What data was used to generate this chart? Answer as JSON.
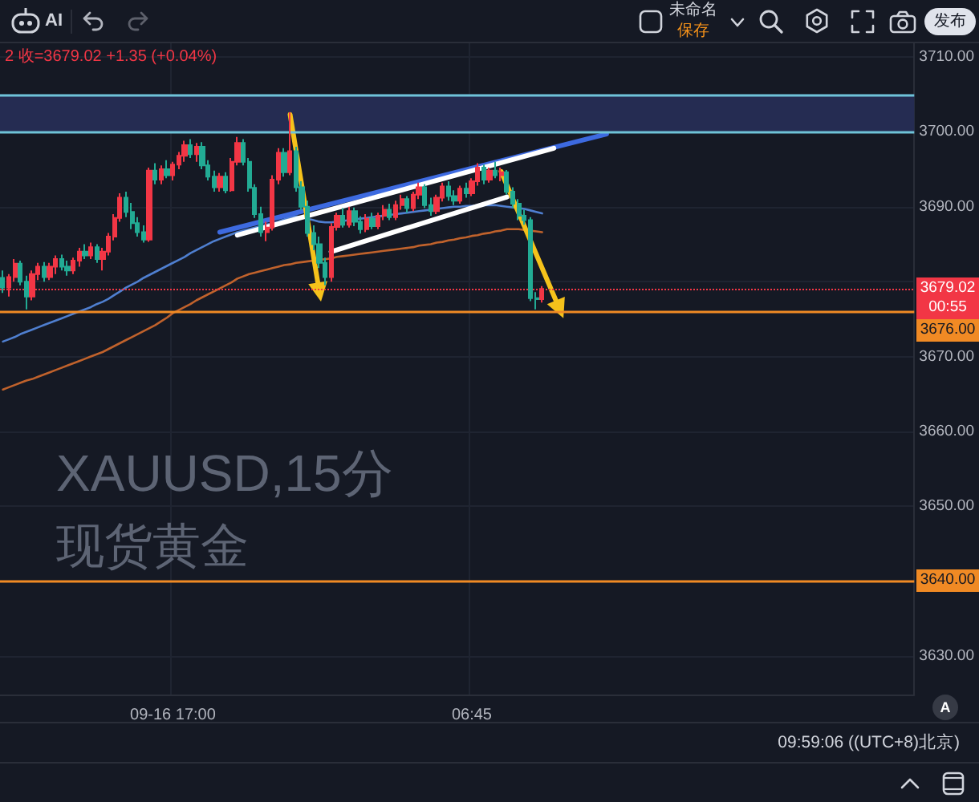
{
  "chart_data": {
    "type": "candlestick",
    "title": "XAUUSD,15分",
    "subtitle": "现货黄金",
    "categories": [
      null,
      null,
      null,
      null,
      null,
      null,
      null,
      null,
      null,
      null,
      null,
      null,
      null,
      null,
      null,
      null,
      null,
      null,
      null,
      null,
      null,
      null,
      null,
      null,
      null,
      null,
      null,
      null,
      null,
      "09-16 17:00",
      null,
      null,
      null,
      null,
      null,
      null,
      null,
      null,
      null,
      null,
      null,
      null,
      null,
      null,
      null,
      null,
      null,
      null,
      null,
      null,
      null,
      null,
      null,
      null,
      null,
      null,
      null,
      null,
      null,
      null,
      null,
      null,
      null,
      null,
      null,
      null,
      null,
      null,
      null,
      null,
      null,
      null,
      null,
      null,
      null,
      null,
      null,
      null,
      null,
      null,
      "06:45",
      null,
      null,
      null,
      null,
      null,
      null,
      null,
      null,
      null,
      null,
      null,
      null,
      null,
      null,
      null,
      null,
      null,
      null,
      null,
      null,
      null,
      null,
      null,
      null,
      null,
      null,
      null,
      null,
      null,
      null,
      null,
      null,
      null,
      null,
      null,
      null,
      null,
      null,
      null,
      null,
      null,
      null,
      null,
      null,
      null,
      null,
      null,
      null,
      null,
      null,
      null,
      null,
      null,
      null,
      null,
      null,
      null,
      null,
      null,
      null,
      null,
      null,
      null,
      null,
      null,
      null,
      null,
      null,
      null,
      null,
      null,
      null,
      null,
      null,
      null
    ],
    "ohlc": [
      [
        3680.5,
        3681.5,
        3678.5,
        3679.2
      ],
      [
        3679.2,
        3681.0,
        3678.0,
        3680.6
      ],
      [
        3680.6,
        3683.0,
        3680.0,
        3682.4
      ],
      [
        3682.4,
        3682.8,
        3679.5,
        3680.0
      ],
      [
        3680.0,
        3680.8,
        3676.3,
        3678.0
      ],
      [
        3678.0,
        3681.5,
        3677.5,
        3681.0
      ],
      [
        3681.0,
        3682.5,
        3680.2,
        3682.0
      ],
      [
        3682.0,
        3682.6,
        3680.0,
        3680.6
      ],
      [
        3680.6,
        3682.5,
        3680.2,
        3682.0
      ],
      [
        3682.0,
        3683.5,
        3681.0,
        3683.0
      ],
      [
        3683.0,
        3683.6,
        3681.5,
        3682.0
      ],
      [
        3682.0,
        3682.8,
        3680.8,
        3681.5
      ],
      [
        3681.5,
        3683.2,
        3681.0,
        3682.8
      ],
      [
        3682.8,
        3684.5,
        3682.0,
        3684.0
      ],
      [
        3684.0,
        3685.0,
        3683.0,
        3683.5
      ],
      [
        3683.5,
        3685.2,
        3683.0,
        3684.6
      ],
      [
        3684.6,
        3685.0,
        3682.5,
        3683.0
      ],
      [
        3683.0,
        3684.5,
        3681.5,
        3684.0
      ],
      [
        3684.0,
        3686.5,
        3683.5,
        3686.0
      ],
      [
        3686.0,
        3689.0,
        3685.5,
        3688.5
      ],
      [
        3688.5,
        3691.8,
        3688.0,
        3691.2
      ],
      [
        3691.2,
        3692.0,
        3688.6,
        3689.3
      ],
      [
        3689.3,
        3690.5,
        3687.0,
        3687.8
      ],
      [
        3687.8,
        3688.6,
        3686.0,
        3686.6
      ],
      [
        3686.6,
        3687.5,
        3685.2,
        3685.6
      ],
      [
        3685.6,
        3695.2,
        3685.3,
        3694.8
      ],
      [
        3694.8,
        3695.8,
        3693.0,
        3693.6
      ],
      [
        3693.6,
        3695.5,
        3693.0,
        3695.0
      ],
      [
        3695.0,
        3696.2,
        3693.8,
        3694.2
      ],
      [
        3694.2,
        3696.0,
        3693.5,
        3695.6
      ],
      [
        3695.6,
        3697.3,
        3695.0,
        3696.8
      ],
      [
        3696.8,
        3698.8,
        3696.0,
        3698.2
      ],
      [
        3698.2,
        3699.0,
        3696.5,
        3697.0
      ],
      [
        3697.0,
        3698.5,
        3696.0,
        3698.0
      ],
      [
        3698.0,
        3698.6,
        3695.0,
        3695.5
      ],
      [
        3695.5,
        3696.2,
        3693.5,
        3694.0
      ],
      [
        3694.0,
        3694.8,
        3692.0,
        3692.6
      ],
      [
        3692.6,
        3694.5,
        3692.0,
        3694.0
      ],
      [
        3694.0,
        3694.6,
        3691.8,
        3692.2
      ],
      [
        3692.2,
        3696.5,
        3692.0,
        3696.0
      ],
      [
        3696.0,
        3699.3,
        3695.5,
        3698.5
      ],
      [
        3698.5,
        3699.0,
        3695.5,
        3696.0
      ],
      [
        3696.0,
        3696.5,
        3692.0,
        3692.5
      ],
      [
        3692.5,
        3693.0,
        3688.5,
        3689.0
      ],
      [
        3689.0,
        3690.0,
        3686.0,
        3686.6
      ],
      [
        3686.6,
        3688.0,
        3685.4,
        3687.2
      ],
      [
        3687.2,
        3694.2,
        3686.8,
        3693.6
      ],
      [
        3693.6,
        3697.8,
        3693.0,
        3697.2
      ],
      [
        3697.2,
        3697.8,
        3694.0,
        3694.6
      ],
      [
        3694.6,
        3702.6,
        3694.2,
        3697.4
      ],
      [
        3697.4,
        3698.0,
        3692.0,
        3692.6
      ],
      [
        3692.6,
        3693.4,
        3689.5,
        3690.0
      ],
      [
        3690.0,
        3690.8,
        3686.0,
        3686.5
      ],
      [
        3686.5,
        3687.5,
        3684.2,
        3685.0
      ],
      [
        3685.0,
        3686.0,
        3681.8,
        3682.5
      ],
      [
        3682.5,
        3683.2,
        3679.5,
        3680.6
      ],
      [
        3680.6,
        3687.8,
        3680.0,
        3687.3
      ],
      [
        3687.3,
        3689.2,
        3686.8,
        3688.8
      ],
      [
        3688.8,
        3689.8,
        3687.2,
        3687.6
      ],
      [
        3687.6,
        3690.0,
        3687.2,
        3689.4
      ],
      [
        3689.4,
        3689.9,
        3687.4,
        3688.0
      ],
      [
        3688.0,
        3688.7,
        3686.4,
        3687.0
      ],
      [
        3687.0,
        3689.0,
        3686.6,
        3688.4
      ],
      [
        3688.4,
        3689.2,
        3687.0,
        3687.4
      ],
      [
        3687.4,
        3689.2,
        3687.0,
        3688.8
      ],
      [
        3688.8,
        3690.2,
        3688.2,
        3689.6
      ],
      [
        3689.6,
        3690.4,
        3688.2,
        3688.6
      ],
      [
        3688.6,
        3690.8,
        3688.2,
        3690.2
      ],
      [
        3690.2,
        3691.6,
        3689.6,
        3691.0
      ],
      [
        3691.0,
        3691.4,
        3689.2,
        3689.8
      ],
      [
        3689.8,
        3692.0,
        3689.4,
        3691.6
      ],
      [
        3691.6,
        3693.2,
        3691.0,
        3692.6
      ],
      [
        3692.6,
        3693.0,
        3689.8,
        3690.2
      ],
      [
        3690.2,
        3691.2,
        3688.8,
        3689.4
      ],
      [
        3689.4,
        3691.6,
        3689.0,
        3691.2
      ],
      [
        3691.2,
        3693.2,
        3690.7,
        3692.7
      ],
      [
        3692.7,
        3693.4,
        3690.8,
        3691.4
      ],
      [
        3691.4,
        3692.2,
        3690.2,
        3690.8
      ],
      [
        3690.8,
        3692.8,
        3690.4,
        3692.4
      ],
      [
        3692.4,
        3693.2,
        3691.2,
        3691.8
      ],
      [
        3691.8,
        3693.8,
        3691.4,
        3693.4
      ],
      [
        3693.4,
        3695.8,
        3692.8,
        3695.2
      ],
      [
        3695.2,
        3695.6,
        3693.0,
        3693.6
      ],
      [
        3693.6,
        3695.2,
        3693.2,
        3694.8
      ],
      [
        3694.8,
        3696.0,
        3693.8,
        3694.2
      ],
      [
        3694.2,
        3695.2,
        3693.4,
        3694.6
      ],
      [
        3694.6,
        3694.9,
        3691.6,
        3692.0
      ],
      [
        3692.0,
        3692.6,
        3689.8,
        3690.4
      ],
      [
        3690.4,
        3691.0,
        3688.2,
        3688.8
      ],
      [
        3688.8,
        3689.6,
        3687.6,
        3688.2
      ],
      [
        3688.2,
        3688.6,
        3677.4,
        3677.8
      ],
      [
        3677.8,
        3678.6,
        3676.3,
        3677.67
      ],
      [
        3677.67,
        3679.4,
        3677.2,
        3679.02
      ],
      null,
      null,
      null,
      null,
      null,
      null,
      null,
      null,
      null,
      null,
      null,
      null,
      null,
      null,
      null,
      null,
      null,
      null,
      null,
      null,
      null,
      null,
      null,
      null,
      null,
      null,
      null,
      null,
      null,
      null,
      null,
      null,
      null,
      null,
      null,
      null,
      null,
      null,
      null,
      null,
      null,
      null,
      null,
      null,
      null,
      null,
      null,
      null,
      null,
      null,
      null,
      null,
      null,
      null,
      null,
      null,
      null,
      null,
      null,
      null,
      null,
      null,
      null
    ],
    "colors": [
      "#22ab94",
      "#f23645",
      "#f23645",
      "#22ab94",
      "#22ab94",
      "#f23645",
      "#f23645",
      "#22ab94",
      "#f23645",
      "#f23645",
      "#22ab94",
      "#22ab94",
      "#f23645",
      "#f23645",
      "#22ab94",
      "#f23645",
      "#22ab94",
      "#f23645",
      "#f23645",
      "#f23645",
      "#f23645",
      "#22ab94",
      "#22ab94",
      "#22ab94",
      "#22ab94",
      "#f23645",
      "#22ab94",
      "#f23645",
      "#22ab94",
      "#f23645",
      "#f23645",
      "#f23645",
      "#22ab94",
      "#f23645",
      "#22ab94",
      "#22ab94",
      "#22ab94",
      "#f23645",
      "#22ab94",
      "#f23645",
      "#f23645",
      "#22ab94",
      "#22ab94",
      "#22ab94",
      "#22ab94",
      "#f23645",
      "#f23645",
      "#f23645",
      "#22ab94",
      "#f23645",
      "#22ab94",
      "#22ab94",
      "#22ab94",
      "#22ab94",
      "#22ab94",
      "#22ab94",
      "#f23645",
      "#f23645",
      "#22ab94",
      "#f23645",
      "#22ab94",
      "#22ab94",
      "#f23645",
      "#22ab94",
      "#f23645",
      "#f23645",
      "#22ab94",
      "#f23645",
      "#f23645",
      "#22ab94",
      "#f23645",
      "#f23645",
      "#22ab94",
      "#22ab94",
      "#f23645",
      "#f23645",
      "#22ab94",
      "#22ab94",
      "#f23645",
      "#22ab94",
      "#f23645",
      "#f23645",
      "#22ab94",
      "#f23645",
      "#22ab94",
      "#f23645",
      "#22ab94",
      "#22ab94",
      "#22ab94",
      "#22ab94",
      "#22ab94",
      "#22ab94",
      "#f23645",
      null,
      null,
      null,
      null,
      null,
      null,
      null,
      null,
      null,
      null,
      null,
      null,
      null,
      null,
      null,
      null,
      null,
      null,
      null,
      null,
      null,
      null,
      null,
      null,
      null,
      null,
      null,
      null,
      null,
      null,
      null,
      null,
      null,
      null,
      null,
      null,
      null,
      null,
      null,
      null,
      null,
      null,
      null,
      null,
      null,
      null,
      null,
      null,
      null,
      null,
      null,
      null,
      null,
      null,
      null,
      null,
      null,
      null,
      null,
      null,
      null,
      null,
      null
    ],
    "series": [
      {
        "type": "line",
        "color": "#4f7fd0",
        "values": [
          3672.0,
          3672.3,
          3672.6,
          3673.0,
          3673.3,
          3673.6,
          3673.9,
          3674.2,
          3674.5,
          3674.8,
          3675.1,
          3675.4,
          3675.7,
          3676.0,
          3676.3,
          3676.6,
          3677.0,
          3677.3,
          3677.7,
          3678.2,
          3678.7,
          3679.2,
          3679.6,
          3680.0,
          3680.5,
          3680.9,
          3681.3,
          3681.7,
          3682.1,
          3682.5,
          3682.9,
          3683.3,
          3683.8,
          3684.2,
          3684.6,
          3685.0,
          3685.4,
          3685.7,
          3686.0,
          3686.3,
          3686.6,
          3686.8,
          3687.0,
          3687.2,
          3687.4,
          3687.6,
          3687.8,
          3688.0,
          3688.3,
          3688.6,
          3688.7,
          3688.6,
          3688.4,
          3688.2,
          3688.0,
          3687.9,
          3687.9,
          3688.0,
          3688.1,
          3688.2,
          3688.3,
          3688.4,
          3688.5,
          3688.6,
          3688.7,
          3688.8,
          3688.9,
          3689.0,
          3689.1,
          3689.2,
          3689.3,
          3689.4,
          3689.5,
          3689.6,
          3689.7,
          3689.8,
          3689.9,
          3690.0,
          3690.0,
          3690.1,
          3690.1,
          3690.2,
          3690.2,
          3690.2,
          3690.2,
          3690.1,
          3690.0,
          3689.9,
          3689.8,
          3689.7,
          3689.5,
          3689.3,
          3689.1,
          null,
          null,
          null,
          null,
          null,
          null,
          null,
          null,
          null,
          null,
          null,
          null,
          null,
          null,
          null,
          null,
          null,
          null,
          null,
          null,
          null,
          null,
          null,
          null,
          null,
          null,
          null,
          null,
          null,
          null,
          null,
          null,
          null,
          null,
          null,
          null,
          null,
          null,
          null,
          null,
          null,
          null,
          null,
          null,
          null,
          null,
          null,
          null,
          null,
          null,
          null,
          null,
          null,
          null,
          null,
          null,
          null,
          null,
          null,
          null,
          null,
          null,
          null
        ]
      },
      {
        "type": "line",
        "color": "#c0622c",
        "values": [
          3665.6,
          3665.9,
          3666.2,
          3666.5,
          3666.8,
          3667.0,
          3667.3,
          3667.6,
          3667.9,
          3668.2,
          3668.5,
          3668.8,
          3669.1,
          3669.4,
          3669.7,
          3670.0,
          3670.3,
          3670.6,
          3671.0,
          3671.4,
          3671.8,
          3672.2,
          3672.6,
          3673.0,
          3673.4,
          3673.8,
          3674.2,
          3674.7,
          3675.2,
          3675.8,
          3676.2,
          3676.6,
          3677.0,
          3677.5,
          3677.9,
          3678.3,
          3678.7,
          3679.1,
          3679.5,
          3679.9,
          3680.4,
          3680.7,
          3681.0,
          3681.2,
          3681.4,
          3681.6,
          3681.8,
          3682.0,
          3682.2,
          3682.3,
          3682.5,
          3682.6,
          3682.7,
          3682.8,
          3682.9,
          3683.0,
          3683.1,
          3683.3,
          3683.4,
          3683.5,
          3683.6,
          3683.7,
          3683.8,
          3683.9,
          3684.0,
          3684.1,
          3684.2,
          3684.3,
          3684.4,
          3684.5,
          3684.6,
          3684.8,
          3684.9,
          3685.0,
          3685.2,
          3685.3,
          3685.5,
          3685.6,
          3685.8,
          3685.9,
          3686.1,
          3686.2,
          3686.4,
          3686.5,
          3686.7,
          3686.8,
          3687.0,
          3687.0,
          3687.0,
          3686.9,
          3686.8,
          3686.7,
          3686.6,
          null,
          null,
          null,
          null,
          null,
          null,
          null,
          null,
          null,
          null,
          null,
          null,
          null,
          null,
          null,
          null,
          null,
          null,
          null,
          null,
          null,
          null,
          null,
          null,
          null,
          null,
          null,
          null,
          null,
          null,
          null,
          null,
          null,
          null,
          null,
          null,
          null,
          null,
          null,
          null,
          null,
          null,
          null,
          null,
          null,
          null,
          null,
          null,
          null,
          null,
          null,
          null,
          null,
          null,
          null,
          null,
          null,
          null,
          null,
          null,
          null,
          null,
          null
        ]
      },
      {
        "type": "line",
        "color": "#3d6ae0",
        "values": [
          null,
          null,
          null,
          null,
          null,
          null,
          null,
          null,
          null,
          null,
          null,
          null,
          null,
          null,
          null,
          null,
          null,
          null,
          null,
          null,
          null,
          null,
          null,
          null,
          null,
          null,
          null,
          null,
          null,
          null,
          null,
          null,
          null,
          null,
          null,
          null,
          null,
          3686.6,
          null,
          null,
          null,
          null,
          null,
          null,
          null,
          null,
          null,
          null,
          null,
          null,
          null,
          null,
          null,
          null,
          null,
          null,
          null,
          null,
          null,
          null,
          null,
          null,
          null,
          null,
          null,
          null,
          null,
          null,
          null,
          null,
          null,
          null,
          null,
          null,
          null,
          null,
          null,
          null,
          null,
          null,
          null,
          null,
          null,
          null,
          null,
          null,
          null,
          null,
          null,
          null,
          null,
          null,
          null,
          null,
          null,
          null,
          null,
          null,
          null,
          null,
          null,
          null,
          null,
          3699.7,
          null,
          null,
          null,
          null,
          null,
          null,
          null,
          null,
          null,
          null,
          null,
          null,
          null,
          null,
          null,
          null,
          null,
          null,
          null,
          null,
          null,
          null,
          null,
          null,
          null,
          null,
          null,
          null,
          null,
          null,
          null,
          null,
          null,
          null,
          null,
          null,
          null,
          null,
          null,
          null,
          null,
          null,
          null,
          null,
          null,
          null,
          null,
          null,
          null,
          null,
          null,
          null
        ]
      },
      {
        "type": "line",
        "color": "#ffffff",
        "values": [
          null,
          null,
          null,
          null,
          null,
          null,
          null,
          null,
          null,
          null,
          null,
          null,
          null,
          null,
          null,
          null,
          null,
          null,
          null,
          null,
          null,
          null,
          null,
          null,
          null,
          null,
          null,
          null,
          null,
          null,
          null,
          null,
          null,
          null,
          null,
          null,
          null,
          null,
          null,
          null,
          3686.2,
          null,
          null,
          null,
          null,
          null,
          null,
          null,
          null,
          null,
          null,
          null,
          null,
          null,
          null,
          null,
          null,
          null,
          null,
          null,
          null,
          null,
          null,
          null,
          null,
          null,
          null,
          null,
          null,
          null,
          null,
          null,
          null,
          null,
          null,
          null,
          null,
          null,
          null,
          null,
          null,
          null,
          null,
          null,
          null,
          null,
          null,
          null,
          null,
          null,
          null,
          null,
          null,
          null,
          3697.8,
          null,
          null,
          null,
          null,
          null,
          null,
          null,
          null,
          null,
          null,
          null,
          null,
          null,
          null,
          null,
          null,
          null,
          null,
          null,
          null,
          null,
          null,
          null,
          null,
          null,
          null,
          null,
          null,
          null,
          null,
          null,
          null,
          null,
          null,
          null,
          null,
          null,
          null,
          null,
          null,
          null,
          null,
          null,
          null,
          null,
          null,
          null,
          null,
          null,
          null,
          null,
          null,
          null,
          null,
          null,
          null,
          null,
          null,
          null,
          null,
          null
        ]
      },
      {
        "type": "line",
        "color": "#ffffff",
        "values": [
          null,
          null,
          null,
          null,
          null,
          null,
          null,
          null,
          null,
          null,
          null,
          null,
          null,
          null,
          null,
          null,
          null,
          null,
          null,
          null,
          null,
          null,
          null,
          null,
          null,
          null,
          null,
          null,
          null,
          null,
          null,
          null,
          null,
          null,
          null,
          null,
          null,
          null,
          null,
          null,
          null,
          null,
          null,
          null,
          null,
          null,
          null,
          null,
          null,
          null,
          null,
          null,
          null,
          null,
          null,
          null,
          3684.0,
          null,
          null,
          null,
          null,
          null,
          null,
          null,
          null,
          null,
          null,
          null,
          null,
          null,
          null,
          null,
          null,
          null,
          null,
          null,
          null,
          null,
          null,
          null,
          null,
          null,
          null,
          null,
          null,
          null,
          3691.3,
          null,
          null,
          null,
          null,
          null,
          null,
          null,
          null,
          null,
          null,
          null,
          null,
          null,
          null,
          null,
          null,
          null,
          null,
          null,
          null,
          null,
          null,
          null,
          null,
          null,
          null,
          null,
          null,
          null,
          null,
          null,
          null,
          null,
          null,
          null,
          null,
          null,
          null,
          null,
          null,
          null,
          null,
          null,
          null,
          null,
          null,
          null,
          null,
          null,
          null,
          null,
          null,
          null,
          null,
          null,
          null,
          null,
          null,
          null,
          null,
          null,
          null,
          null,
          null,
          null,
          null,
          null,
          null,
          null
        ]
      },
      {
        "type": "line",
        "color": "#f5c21b",
        "marker": "triangle",
        "values": [
          null,
          null,
          null,
          null,
          null,
          null,
          null,
          null,
          null,
          null,
          null,
          null,
          null,
          null,
          null,
          null,
          null,
          null,
          null,
          null,
          null,
          null,
          null,
          null,
          null,
          null,
          null,
          null,
          null,
          null,
          null,
          null,
          null,
          null,
          null,
          null,
          null,
          null,
          null,
          null,
          null,
          null,
          null,
          null,
          null,
          null,
          null,
          null,
          null,
          3702.3,
          null,
          null,
          null,
          null,
          3678.6,
          null,
          null,
          null,
          null,
          null,
          null,
          null,
          null,
          null,
          null,
          null,
          null,
          null,
          null,
          null,
          null,
          null,
          null,
          null,
          null,
          null,
          null,
          null,
          null,
          null,
          null,
          null,
          null,
          null,
          null,
          null,
          null,
          null,
          null,
          null,
          null,
          null,
          null,
          null,
          null,
          null,
          null,
          null,
          null,
          null,
          null,
          null,
          null,
          null,
          null,
          null,
          null,
          null,
          null,
          null,
          null,
          null,
          null,
          null,
          null,
          null,
          null,
          null,
          null,
          null,
          null,
          null,
          null,
          null,
          null,
          null,
          null,
          null,
          null,
          null,
          null,
          null,
          null,
          null,
          null,
          null,
          null,
          null,
          null,
          null,
          null,
          null,
          null,
          null,
          null,
          null,
          null,
          null,
          null,
          null,
          null,
          null,
          null,
          null,
          null,
          null
        ]
      },
      {
        "type": "line",
        "color": "#f5c21b",
        "marker": "triangle",
        "values": [
          null,
          null,
          null,
          null,
          null,
          null,
          null,
          null,
          null,
          null,
          null,
          null,
          null,
          null,
          null,
          null,
          null,
          null,
          null,
          null,
          null,
          null,
          null,
          null,
          null,
          null,
          null,
          null,
          null,
          null,
          null,
          null,
          null,
          null,
          null,
          null,
          null,
          null,
          null,
          null,
          null,
          null,
          null,
          null,
          null,
          null,
          null,
          null,
          null,
          null,
          null,
          null,
          null,
          null,
          null,
          null,
          null,
          null,
          null,
          null,
          null,
          null,
          null,
          null,
          null,
          null,
          null,
          null,
          null,
          null,
          null,
          null,
          null,
          null,
          null,
          null,
          null,
          null,
          null,
          null,
          null,
          null,
          null,
          null,
          null,
          3694.7,
          null,
          null,
          null,
          null,
          null,
          null,
          null,
          null,
          null,
          3676.3,
          null,
          null,
          null,
          null,
          null,
          null,
          null,
          null,
          null,
          null,
          null,
          null,
          null,
          null,
          null,
          null,
          null,
          null,
          null,
          null,
          null,
          null,
          null,
          null,
          null,
          null,
          null,
          null,
          null,
          null,
          null,
          null,
          null,
          null,
          null,
          null,
          null,
          null,
          null,
          null,
          null,
          null,
          null,
          null,
          null,
          null,
          null,
          null,
          null,
          null,
          null,
          null,
          null,
          null,
          null,
          null,
          null,
          null,
          null,
          null
        ]
      }
    ],
    "ylim": [
      3624.9,
      3711.8
    ],
    "yticks": [
      {
        "value": 3630,
        "label": "3630.00"
      },
      {
        "value": 3640,
        "label": null
      },
      {
        "value": 3650,
        "label": "3650.00"
      },
      {
        "value": 3660,
        "label": "3660.00"
      },
      {
        "value": 3670,
        "label": "3670.00"
      },
      {
        "value": 3680,
        "label": null
      },
      {
        "value": 3690,
        "label": "3690.00"
      },
      {
        "value": 3700,
        "label": "3700.00"
      },
      {
        "value": 3710,
        "label": "3710.00"
      }
    ],
    "ref_lines": [
      {
        "axis": "y",
        "value": 3705,
        "color": "#6fc3d8"
      },
      {
        "axis": "y",
        "value": 3700,
        "color": "#6fc3d8"
      },
      {
        "axis": "y",
        "value": 3679.02,
        "label": "3679.02\n00:55",
        "color": "#f23645",
        "line_style": "dotted"
      },
      {
        "axis": "y",
        "value": 3676,
        "label": "3676.00",
        "color": "#f08a24"
      },
      {
        "axis": "y",
        "value": 3640,
        "label": "3640.00",
        "color": "#f08a24"
      }
    ],
    "bands": [
      {
        "axis": "y",
        "from": 3700,
        "to": 3705,
        "color": "#252c52"
      }
    ],
    "annotations": [
      "2 收=3679.02 +1.35 (+0.04%)",
      "AI",
      "未命名",
      "保存",
      "发布",
      "A",
      "09:59:06 ((UTC+8)北京)"
    ],
    "grid": true
  }
}
